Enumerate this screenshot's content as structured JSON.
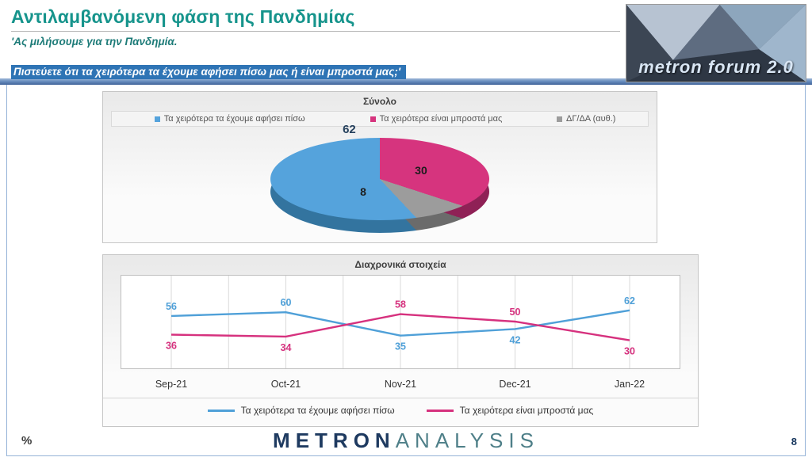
{
  "header": {
    "title": "Αντιλαμβανόμενη φάση της Πανδημίας",
    "subtitle_line1": "'Ας μιλήσουμε για την Πανδημία.",
    "subtitle_line2": "Πιστεύετε ότι τα χειρότερα τα έχουμε αφήσει πίσω μας ή είναι μπροστά μας;'",
    "brand_text": "metron forum 2.0"
  },
  "footer": {
    "percent_label": "%",
    "logo_part1": "METRON",
    "logo_part2": "ANALYSIS",
    "page_number": "8"
  },
  "chart_data": [
    {
      "type": "pie",
      "title": "Σύνολο",
      "slices": [
        {
          "label": "Τα χειρότερα τα έχουμε αφήσει πίσω",
          "value": 62,
          "color": "#55A3DC",
          "side_color": "#33749F"
        },
        {
          "label": "Τα χειρότερα είναι μπροστά μας",
          "value": 30,
          "color": "#D6347E",
          "side_color": "#8F2156"
        },
        {
          "label": "ΔΓ/ΔΑ (αυθ.)",
          "value": 8,
          "color": "#9C9C9C",
          "side_color": "#6B6B6B"
        }
      ]
    },
    {
      "type": "line",
      "title": "Διαχρονικά στοιχεία",
      "categories": [
        "Sep-21",
        "Oct-21",
        "Nov-21",
        "Dec-21",
        "Jan-22"
      ],
      "series": [
        {
          "name": "Τα χειρότερα τα έχουμε αφήσει πίσω",
          "color": "#4FA0D8",
          "values": [
            56,
            60,
            35,
            42,
            62
          ]
        },
        {
          "name": "Τα χειρότερα είναι μπροστά μας",
          "color": "#D6317E",
          "values": [
            36,
            34,
            58,
            50,
            30
          ]
        }
      ],
      "ylim": [
        0,
        100
      ],
      "grid": "vertical",
      "legend_position": "bottom"
    }
  ]
}
